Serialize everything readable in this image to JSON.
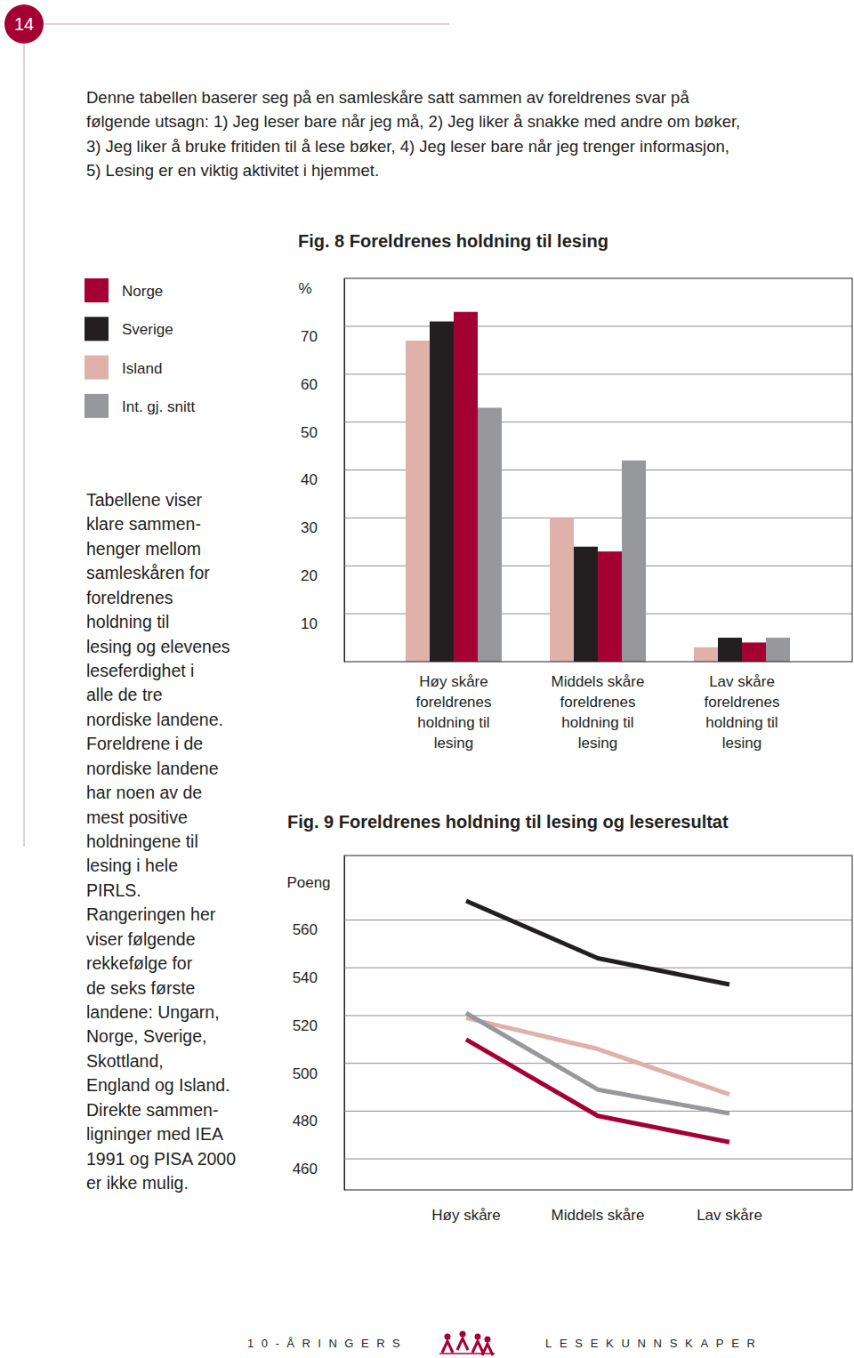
{
  "page_number": "14",
  "intro": [
    "Denne tabellen baserer seg på en samleskåre satt sammen av foreldrenes svar på",
    "følgende utsagn: 1) Jeg leser bare når jeg må, 2) Jeg liker å snakke med andre om bøker,",
    "3) Jeg liker å bruke fritiden til å lese bøker, 4) Jeg leser bare når jeg trenger informasjon,",
    "5) Lesing er en viktig aktivitet i hjemmet."
  ],
  "sidebar": [
    "Tabellene viser",
    "klare sammen-",
    "henger mellom",
    "samleskåren for",
    "foreldrenes",
    "holdning til",
    "lesing og elevenes",
    "leseferdighet i",
    "alle de tre",
    "nordiske landene.",
    "Foreldrene i de",
    "nordiske landene",
    "har noen av de",
    "mest positive",
    "holdningene til",
    "lesing i hele",
    "PIRLS.",
    "Rangeringen her",
    "viser følgende",
    "rekkefølge for",
    "de seks første",
    "landene: Ungarn,",
    "Norge, Sverige,",
    "Skottland,",
    "England og Island.",
    "Direkte sammen-",
    "ligninger med IEA",
    "1991 og PISA 2000",
    "er ikke mulig."
  ],
  "footer": {
    "left": "10-ÅRINGERS",
    "right": "LESEKUNNSKAPER"
  },
  "chart_data": [
    {
      "type": "bar",
      "title": "Fig. 8 Foreldrenes holdning til lesing",
      "ylabel": "%",
      "categories": [
        "Høy skåre\nforeldrenes\nholdning til\nlesing",
        "Middels skåre\nforeldrenes\nholdning til\nlesing",
        "Lav skåre\nforeldrenes\nholdning til\nlesing"
      ],
      "series": [
        {
          "name": "Norge",
          "color": "#a50034",
          "values": [
            73,
            23,
            4
          ]
        },
        {
          "name": "Sverige",
          "color": "#231f20",
          "values": [
            71,
            24,
            5
          ]
        },
        {
          "name": "Island",
          "color": "#e0b0aa",
          "values": [
            67,
            30,
            3
          ]
        },
        {
          "name": "Int. gj. snitt",
          "color": "#96989b",
          "values": [
            53,
            42,
            5
          ]
        }
      ],
      "ylim": [
        0,
        80
      ],
      "yticks": [
        10,
        20,
        30,
        40,
        50,
        60,
        70
      ],
      "grid": true,
      "legend": "left"
    },
    {
      "type": "line",
      "title": "Fig. 9 Foreldrenes holdning til lesing og leseresultat",
      "ylabel": "Poeng",
      "categories": [
        "Høy skåre",
        "Middels skåre",
        "Lav skåre"
      ],
      "series": [
        {
          "color": "#a50034",
          "values": [
            510,
            478,
            467
          ]
        },
        {
          "color": "#231f20",
          "values": [
            568,
            544,
            533
          ]
        },
        {
          "color": "#e0b0aa",
          "values": [
            519,
            506,
            487
          ]
        },
        {
          "color": "#96989b",
          "values": [
            521,
            489,
            479
          ]
        }
      ],
      "ylim": [
        447,
        587
      ],
      "yticks": [
        460,
        480,
        500,
        520,
        540,
        560
      ],
      "grid": true
    }
  ]
}
